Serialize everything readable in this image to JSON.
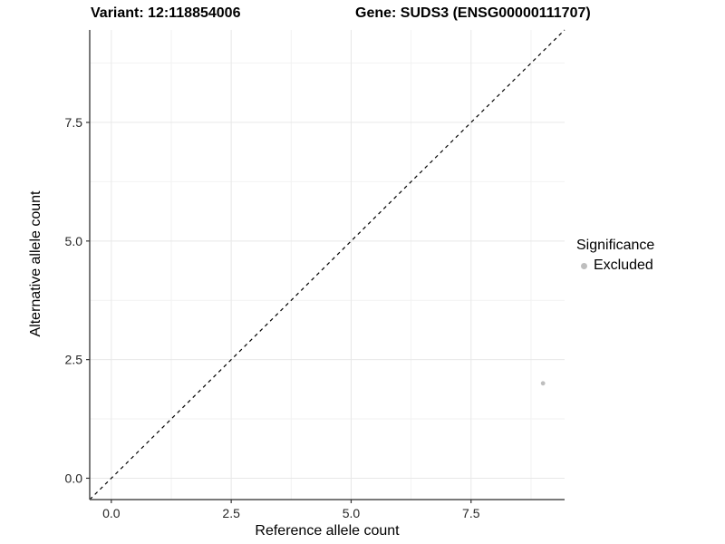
{
  "header": {
    "title_left": "Variant: 12:118854006",
    "title_right": "Gene: SUDS3 (ENSG00000111707)"
  },
  "chart_data": {
    "type": "scatter",
    "title_left": "Variant: 12:118854006",
    "title_right": "Gene: SUDS3 (ENSG00000111707)",
    "xlabel": "Reference allele count",
    "ylabel": "Alternative allele count",
    "xlim": [
      -0.45,
      9.45
    ],
    "ylim": [
      -0.45,
      9.45
    ],
    "x_ticks": [
      0,
      2.5,
      5,
      7.5
    ],
    "y_ticks": [
      0,
      2.5,
      5,
      7.5
    ],
    "minor_ticks": [
      1.25,
      3.75,
      6.25,
      8.75
    ],
    "grid": true,
    "grid_major_color": "#e8e8e8",
    "grid_minor_color": "#f2f2f2",
    "axis_line_color": "#4d4d4d",
    "reference_line": {
      "type": "identity-diagonal",
      "style": "dashed",
      "color": "#000000",
      "from": [
        -0.45,
        -0.45
      ],
      "to": [
        9.45,
        9.45
      ]
    },
    "series": [
      {
        "name": "Excluded",
        "color": "#bebebe",
        "point_radius": 2.4,
        "points": [
          {
            "x": 9,
            "y": 2
          }
        ]
      }
    ],
    "legend": {
      "title": "Significance",
      "position": "right",
      "items": [
        {
          "label": "Excluded",
          "color": "#bebebe"
        }
      ]
    }
  }
}
